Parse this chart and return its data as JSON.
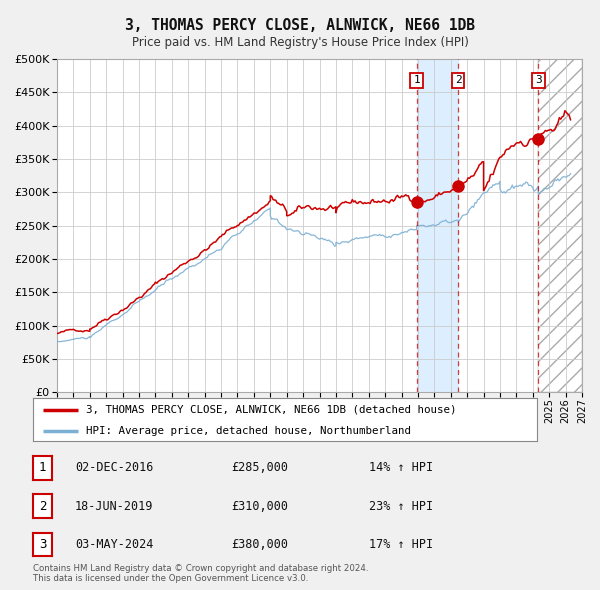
{
  "title": "3, THOMAS PERCY CLOSE, ALNWICK, NE66 1DB",
  "subtitle": "Price paid vs. HM Land Registry's House Price Index (HPI)",
  "legend_line1": "3, THOMAS PERCY CLOSE, ALNWICK, NE66 1DB (detached house)",
  "legend_line2": "HPI: Average price, detached house, Northumberland",
  "red_line_color": "#cc0000",
  "blue_line_color": "#7bafd4",
  "sale_dot_color": "#cc0000",
  "table_rows": [
    {
      "num": "1",
      "date": "02-DEC-2016",
      "price": "£285,000",
      "hpi": "14% ↑ HPI"
    },
    {
      "num": "2",
      "date": "18-JUN-2019",
      "price": "£310,000",
      "hpi": "23% ↑ HPI"
    },
    {
      "num": "3",
      "date": "03-MAY-2024",
      "price": "£380,000",
      "hpi": "17% ↑ HPI"
    }
  ],
  "sale_dates": [
    2016.92,
    2019.46,
    2024.34
  ],
  "sale_prices": [
    285000,
    310000,
    380000
  ],
  "vline_dates": [
    2016.92,
    2019.46,
    2024.34
  ],
  "shaded_region": [
    2016.92,
    2019.46
  ],
  "hatched_region_start": 2024.34,
  "ylim": [
    0,
    500000
  ],
  "xlim": [
    1995,
    2027
  ],
  "yticks": [
    0,
    50000,
    100000,
    150000,
    200000,
    250000,
    300000,
    350000,
    400000,
    450000,
    500000
  ],
  "footer": "Contains HM Land Registry data © Crown copyright and database right 2024.\nThis data is licensed under the Open Government Licence v3.0.",
  "bg_color": "#f0f0f0",
  "plot_bg_color": "#ffffff",
  "grid_color": "#cccccc",
  "shaded_color": "#ddeeff"
}
